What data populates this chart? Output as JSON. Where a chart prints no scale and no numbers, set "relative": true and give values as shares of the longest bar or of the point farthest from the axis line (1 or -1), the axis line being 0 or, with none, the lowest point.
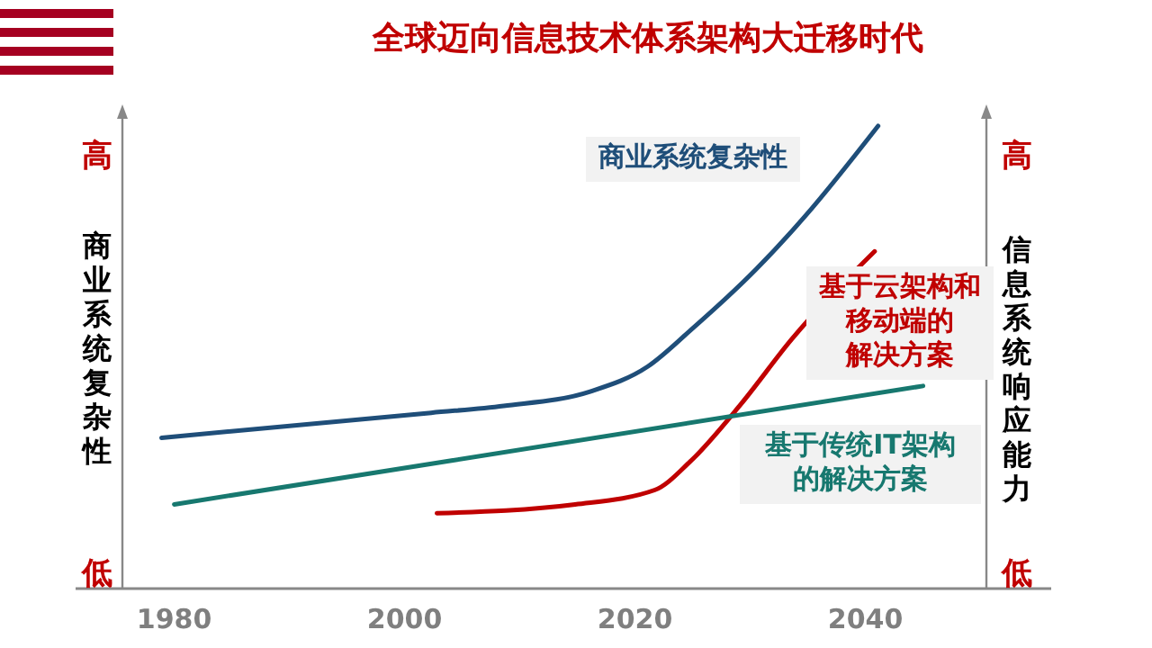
{
  "chart_data": {
    "type": "line",
    "title": "全球迈向信息技术体系架构大迁移时代",
    "ylabel": "商业系统复杂性",
    "y2label": "信息系统响应能力",
    "relative": true,
    "xlim": [
      1975.5,
      2050.5
    ],
    "xticks": [
      1980,
      2000,
      2020,
      2040
    ],
    "annotations": [
      "高",
      "低",
      "高",
      "低"
    ],
    "series": [
      {
        "name": "商业系统复杂性",
        "color": "#1f4e79",
        "x": [
          1978.9,
          2002.3,
          2008.6,
          2016.1,
          2021.1,
          2024.8,
          2030.5,
          2034.8,
          2041.1
        ],
        "values": [
          0.326,
          0.38,
          0.395,
          0.426,
          0.48,
          0.558,
          0.69,
          0.806,
          1
        ]
      },
      {
        "name": "基于云架构和移动端的解决方案",
        "color": "#c00000",
        "x": [
          2002.8,
          2014.8,
          2021.7,
          2024.8,
          2029.2,
          2033.6,
          2040.8
        ],
        "values": [
          0.163,
          0.182,
          0.213,
          0.275,
          0.399,
          0.539,
          0.729
        ]
      },
      {
        "name": "基于传统IT架构的解决方案",
        "color": "#17786f",
        "x": [
          1980,
          2045
        ],
        "values": [
          0.182,
          0.438
        ]
      }
    ]
  }
}
